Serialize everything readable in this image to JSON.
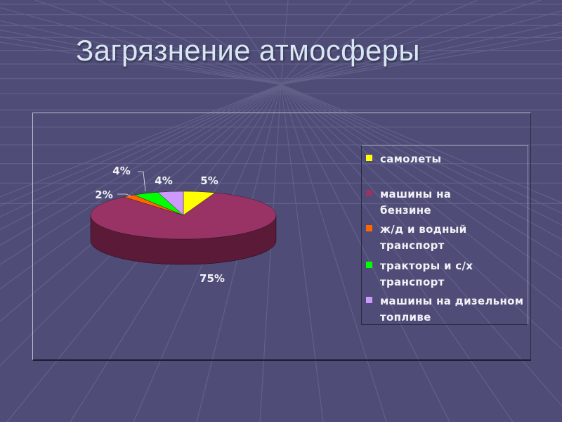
{
  "slide": {
    "title": "Загрязнение атмосферы"
  },
  "colors": {
    "background": "#4f4e78",
    "grid": "#6f6e96",
    "text": "#f2f2f6"
  },
  "chart_data": {
    "type": "pie",
    "style": "3d",
    "title": "",
    "legend_position": "right",
    "slices": [
      {
        "label": "самолеты",
        "value": 5,
        "value_label": "5%",
        "color": "#ffff00",
        "side_color": "#bcbc00"
      },
      {
        "label": "машины на бензине",
        "value": 75,
        "value_label": "75%",
        "color": "#993366",
        "side_color": "#5a1a38"
      },
      {
        "label": "ж/д и водный транспорт",
        "value": 2,
        "value_label": "2%",
        "color": "#ff6600",
        "side_color": "#b04500"
      },
      {
        "label": "тракторы и с/х транспорт",
        "value": 4,
        "value_label": "4%",
        "color": "#00ff00",
        "side_color": "#00a800"
      },
      {
        "label": "машины на дизельном топливе",
        "value": 4,
        "value_label": "4%",
        "color": "#cc99ff",
        "side_color": "#8e68b8"
      }
    ]
  }
}
